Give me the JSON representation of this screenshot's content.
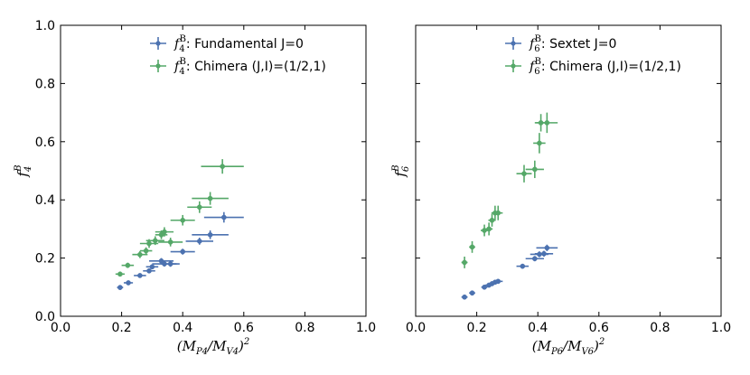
{
  "chart_data": [
    {
      "type": "scatter",
      "title": "",
      "xlabel": "(M_P4/M_V4)^2",
      "ylabel": "f_4^B",
      "xlim": [
        0.0,
        1.0
      ],
      "ylim": [
        0.0,
        1.0
      ],
      "xticks": [
        "0.0",
        "0.2",
        "0.4",
        "0.6",
        "0.8",
        "1.0"
      ],
      "yticks": [
        "0.0",
        "0.2",
        "0.4",
        "0.6",
        "0.8",
        "1.0"
      ],
      "legend_position": "top-right",
      "series": [
        {
          "name": "Fundamental J=0",
          "legend_symbol": "f",
          "legend_sub": "4",
          "legend_sup": "B",
          "legend_label": ": Fundamental J=0",
          "color": "#4C72B0",
          "points": [
            {
              "x": 0.195,
              "y": 0.099,
              "xerr": 0.01,
              "yerr": 0.005
            },
            {
              "x": 0.222,
              "y": 0.115,
              "xerr": 0.015,
              "yerr": 0.006
            },
            {
              "x": 0.26,
              "y": 0.14,
              "xerr": 0.02,
              "yerr": 0.007
            },
            {
              "x": 0.29,
              "y": 0.156,
              "xerr": 0.02,
              "yerr": 0.008
            },
            {
              "x": 0.3,
              "y": 0.17,
              "xerr": 0.02,
              "yerr": 0.008
            },
            {
              "x": 0.33,
              "y": 0.19,
              "xerr": 0.04,
              "yerr": 0.01
            },
            {
              "x": 0.34,
              "y": 0.18,
              "xerr": 0.04,
              "yerr": 0.009
            },
            {
              "x": 0.36,
              "y": 0.18,
              "xerr": 0.03,
              "yerr": 0.01
            },
            {
              "x": 0.4,
              "y": 0.222,
              "xerr": 0.04,
              "yerr": 0.01
            },
            {
              "x": 0.455,
              "y": 0.258,
              "xerr": 0.045,
              "yerr": 0.012
            },
            {
              "x": 0.49,
              "y": 0.28,
              "xerr": 0.06,
              "yerr": 0.015
            },
            {
              "x": 0.535,
              "y": 0.34,
              "xerr": 0.065,
              "yerr": 0.018
            }
          ]
        },
        {
          "name": "Chimera (J,I)=(1/2,1)",
          "legend_symbol": "f",
          "legend_sub": "4",
          "legend_sup": "B",
          "legend_label": ": Chimera (J,I)=(1/2,1)",
          "color": "#55A868",
          "points": [
            {
              "x": 0.195,
              "y": 0.145,
              "xerr": 0.015,
              "yerr": 0.008
            },
            {
              "x": 0.22,
              "y": 0.175,
              "xerr": 0.02,
              "yerr": 0.009
            },
            {
              "x": 0.26,
              "y": 0.212,
              "xerr": 0.025,
              "yerr": 0.012
            },
            {
              "x": 0.28,
              "y": 0.225,
              "xerr": 0.02,
              "yerr": 0.012
            },
            {
              "x": 0.29,
              "y": 0.25,
              "xerr": 0.03,
              "yerr": 0.015
            },
            {
              "x": 0.31,
              "y": 0.26,
              "xerr": 0.03,
              "yerr": 0.015
            },
            {
              "x": 0.33,
              "y": 0.28,
              "xerr": 0.02,
              "yerr": 0.015
            },
            {
              "x": 0.34,
              "y": 0.29,
              "xerr": 0.03,
              "yerr": 0.016
            },
            {
              "x": 0.36,
              "y": 0.255,
              "xerr": 0.04,
              "yerr": 0.015
            },
            {
              "x": 0.4,
              "y": 0.33,
              "xerr": 0.04,
              "yerr": 0.018
            },
            {
              "x": 0.455,
              "y": 0.375,
              "xerr": 0.04,
              "yerr": 0.02
            },
            {
              "x": 0.49,
              "y": 0.405,
              "xerr": 0.06,
              "yerr": 0.022
            },
            {
              "x": 0.53,
              "y": 0.515,
              "xerr": 0.07,
              "yerr": 0.025
            }
          ]
        }
      ]
    },
    {
      "type": "scatter",
      "title": "",
      "xlabel": "(M_P6/M_V6)^2",
      "ylabel": "f_6^B",
      "xlim": [
        0.0,
        1.0
      ],
      "ylim": [
        0.0,
        1.0
      ],
      "xticks": [
        "0.0",
        "0.2",
        "0.4",
        "0.6",
        "0.8",
        "1.0"
      ],
      "yticks": [],
      "legend_position": "top-right",
      "series": [
        {
          "name": "Sextet J=0",
          "legend_symbol": "f",
          "legend_sub": "6",
          "legend_sup": "B",
          "legend_label": ": Sextet J=0",
          "color": "#4C72B0",
          "points": [
            {
              "x": 0.16,
              "y": 0.066,
              "xerr": 0.01,
              "yerr": 0.004
            },
            {
              "x": 0.185,
              "y": 0.08,
              "xerr": 0.01,
              "yerr": 0.004
            },
            {
              "x": 0.225,
              "y": 0.1,
              "xerr": 0.01,
              "yerr": 0.005
            },
            {
              "x": 0.24,
              "y": 0.107,
              "xerr": 0.012,
              "yerr": 0.005
            },
            {
              "x": 0.25,
              "y": 0.112,
              "xerr": 0.012,
              "yerr": 0.006
            },
            {
              "x": 0.26,
              "y": 0.117,
              "xerr": 0.012,
              "yerr": 0.006
            },
            {
              "x": 0.27,
              "y": 0.12,
              "xerr": 0.015,
              "yerr": 0.006
            },
            {
              "x": 0.35,
              "y": 0.172,
              "xerr": 0.02,
              "yerr": 0.008
            },
            {
              "x": 0.39,
              "y": 0.198,
              "xerr": 0.03,
              "yerr": 0.009
            },
            {
              "x": 0.405,
              "y": 0.213,
              "xerr": 0.03,
              "yerr": 0.01
            },
            {
              "x": 0.42,
              "y": 0.215,
              "xerr": 0.03,
              "yerr": 0.01
            },
            {
              "x": 0.43,
              "y": 0.235,
              "xerr": 0.035,
              "yerr": 0.011
            }
          ]
        },
        {
          "name": "Chimera (J,I)=(1/2,1)",
          "legend_symbol": "f",
          "legend_sub": "6",
          "legend_sup": "B",
          "legend_label": ": Chimera (J,I)=(1/2,1)",
          "color": "#55A868",
          "points": [
            {
              "x": 0.16,
              "y": 0.185,
              "xerr": 0.01,
              "yerr": 0.02
            },
            {
              "x": 0.185,
              "y": 0.238,
              "xerr": 0.01,
              "yerr": 0.02
            },
            {
              "x": 0.225,
              "y": 0.295,
              "xerr": 0.012,
              "yerr": 0.02
            },
            {
              "x": 0.24,
              "y": 0.3,
              "xerr": 0.012,
              "yerr": 0.022
            },
            {
              "x": 0.25,
              "y": 0.33,
              "xerr": 0.012,
              "yerr": 0.022
            },
            {
              "x": 0.26,
              "y": 0.355,
              "xerr": 0.012,
              "yerr": 0.025
            },
            {
              "x": 0.27,
              "y": 0.355,
              "xerr": 0.015,
              "yerr": 0.025
            },
            {
              "x": 0.355,
              "y": 0.49,
              "xerr": 0.025,
              "yerr": 0.03
            },
            {
              "x": 0.39,
              "y": 0.505,
              "xerr": 0.03,
              "yerr": 0.03
            },
            {
              "x": 0.405,
              "y": 0.595,
              "xerr": 0.02,
              "yerr": 0.035
            },
            {
              "x": 0.41,
              "y": 0.665,
              "xerr": 0.02,
              "yerr": 0.03
            },
            {
              "x": 0.43,
              "y": 0.665,
              "xerr": 0.035,
              "yerr": 0.035
            }
          ]
        }
      ]
    }
  ]
}
